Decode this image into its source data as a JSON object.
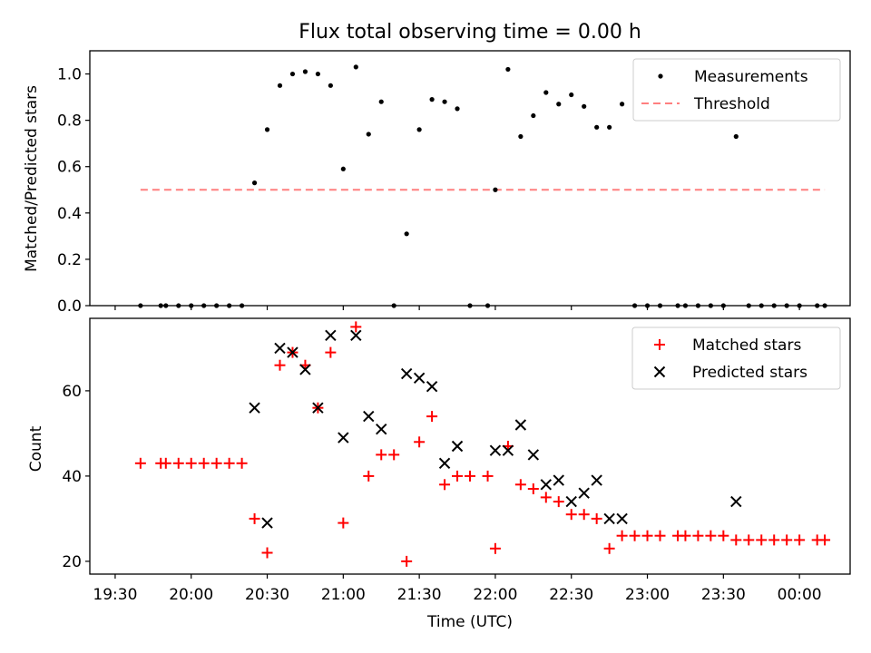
{
  "chart_data": [
    {
      "type": "scatter",
      "title": "Flux total observing time = 0.00 h",
      "xlabel": "",
      "ylabel": "Matched/Predicted stars",
      "xlim": [
        "19:20",
        "00:20"
      ],
      "ylim": [
        0.0,
        1.1
      ],
      "yticks": [
        "0.0",
        "0.2",
        "0.4",
        "0.6",
        "0.8",
        "1.0"
      ],
      "legend": {
        "position": "top-right",
        "entries": [
          "Measurements",
          "Threshold"
        ]
      },
      "threshold": {
        "name": "Threshold",
        "y": 0.5,
        "x_start": "19:40",
        "x_end": "00:10",
        "color": "#ff7f7f"
      },
      "series": [
        {
          "name": "Measurements",
          "color": "#000000",
          "marker": "dot",
          "points": [
            [
              "19:40",
              0.0
            ],
            [
              "19:48",
              0.0
            ],
            [
              "19:50",
              0.0
            ],
            [
              "19:55",
              0.0
            ],
            [
              "20:00",
              0.0
            ],
            [
              "20:05",
              0.0
            ],
            [
              "20:10",
              0.0
            ],
            [
              "20:15",
              0.0
            ],
            [
              "20:20",
              0.0
            ],
            [
              "20:25",
              0.53
            ],
            [
              "20:30",
              0.76
            ],
            [
              "20:35",
              0.95
            ],
            [
              "20:40",
              1.0
            ],
            [
              "20:45",
              1.01
            ],
            [
              "20:50",
              1.0
            ],
            [
              "20:55",
              0.95
            ],
            [
              "21:00",
              0.59
            ],
            [
              "21:05",
              1.03
            ],
            [
              "21:10",
              0.74
            ],
            [
              "21:15",
              0.88
            ],
            [
              "21:20",
              0.0
            ],
            [
              "21:25",
              0.31
            ],
            [
              "21:30",
              0.76
            ],
            [
              "21:35",
              0.89
            ],
            [
              "21:40",
              0.88
            ],
            [
              "21:45",
              0.85
            ],
            [
              "21:50",
              0.0
            ],
            [
              "21:57",
              0.0
            ],
            [
              "22:00",
              0.5
            ],
            [
              "22:05",
              1.02
            ],
            [
              "22:10",
              0.73
            ],
            [
              "22:15",
              0.82
            ],
            [
              "22:20",
              0.92
            ],
            [
              "22:25",
              0.87
            ],
            [
              "22:30",
              0.91
            ],
            [
              "22:35",
              0.86
            ],
            [
              "22:40",
              0.77
            ],
            [
              "22:45",
              0.77
            ],
            [
              "22:50",
              0.87
            ],
            [
              "22:55",
              0.0
            ],
            [
              "23:00",
              0.0
            ],
            [
              "23:05",
              0.0
            ],
            [
              "23:12",
              0.0
            ],
            [
              "23:15",
              0.0
            ],
            [
              "23:20",
              0.0
            ],
            [
              "23:25",
              0.0
            ],
            [
              "23:30",
              0.0
            ],
            [
              "23:35",
              0.73
            ],
            [
              "23:40",
              0.0
            ],
            [
              "23:45",
              0.0
            ],
            [
              "23:50",
              0.0
            ],
            [
              "23:55",
              0.0
            ],
            [
              "00:00",
              0.0
            ],
            [
              "00:07",
              0.0
            ],
            [
              "00:10",
              0.0
            ]
          ]
        }
      ]
    },
    {
      "type": "scatter",
      "title": "",
      "xlabel": "Time (UTC)",
      "ylabel": "Count",
      "xlim": [
        "19:20",
        "00:20"
      ],
      "ylim": [
        17,
        77
      ],
      "yticks": [
        "20",
        "40",
        "60"
      ],
      "xticks": [
        "19:30",
        "20:00",
        "20:30",
        "21:00",
        "21:30",
        "22:00",
        "22:30",
        "23:00",
        "23:30",
        "00:00"
      ],
      "legend": {
        "position": "top-right",
        "entries": [
          "Matched stars",
          "Predicted stars"
        ]
      },
      "series": [
        {
          "name": "Matched stars",
          "color": "#ff0000",
          "marker": "plus",
          "points": [
            [
              "19:40",
              43
            ],
            [
              "19:48",
              43
            ],
            [
              "19:50",
              43
            ],
            [
              "19:55",
              43
            ],
            [
              "20:00",
              43
            ],
            [
              "20:05",
              43
            ],
            [
              "20:10",
              43
            ],
            [
              "20:15",
              43
            ],
            [
              "20:20",
              43
            ],
            [
              "20:25",
              30
            ],
            [
              "20:30",
              22
            ],
            [
              "20:35",
              66
            ],
            [
              "20:40",
              69
            ],
            [
              "20:45",
              66
            ],
            [
              "20:50",
              56
            ],
            [
              "20:55",
              69
            ],
            [
              "21:00",
              29
            ],
            [
              "21:05",
              75
            ],
            [
              "21:10",
              40
            ],
            [
              "21:15",
              45
            ],
            [
              "21:20",
              45
            ],
            [
              "21:25",
              20
            ],
            [
              "21:30",
              48
            ],
            [
              "21:35",
              54
            ],
            [
              "21:40",
              38
            ],
            [
              "21:45",
              40
            ],
            [
              "21:50",
              40
            ],
            [
              "21:57",
              40
            ],
            [
              "22:00",
              23
            ],
            [
              "22:05",
              47
            ],
            [
              "22:10",
              38
            ],
            [
              "22:15",
              37
            ],
            [
              "22:20",
              35
            ],
            [
              "22:25",
              34
            ],
            [
              "22:30",
              31
            ],
            [
              "22:35",
              31
            ],
            [
              "22:40",
              30
            ],
            [
              "22:45",
              23
            ],
            [
              "22:50",
              26
            ],
            [
              "22:55",
              26
            ],
            [
              "23:00",
              26
            ],
            [
              "23:05",
              26
            ],
            [
              "23:12",
              26
            ],
            [
              "23:15",
              26
            ],
            [
              "23:20",
              26
            ],
            [
              "23:25",
              26
            ],
            [
              "23:30",
              26
            ],
            [
              "23:35",
              25
            ],
            [
              "23:40",
              25
            ],
            [
              "23:45",
              25
            ],
            [
              "23:50",
              25
            ],
            [
              "23:55",
              25
            ],
            [
              "00:00",
              25
            ],
            [
              "00:07",
              25
            ],
            [
              "00:10",
              25
            ]
          ]
        },
        {
          "name": "Predicted stars",
          "color": "#000000",
          "marker": "x",
          "points": [
            [
              "20:25",
              56
            ],
            [
              "20:30",
              29
            ],
            [
              "20:35",
              70
            ],
            [
              "20:40",
              69
            ],
            [
              "20:45",
              65
            ],
            [
              "20:50",
              56
            ],
            [
              "20:55",
              73
            ],
            [
              "21:00",
              49
            ],
            [
              "21:05",
              73
            ],
            [
              "21:10",
              54
            ],
            [
              "21:15",
              51
            ],
            [
              "21:25",
              64
            ],
            [
              "21:30",
              63
            ],
            [
              "21:35",
              61
            ],
            [
              "21:40",
              43
            ],
            [
              "21:45",
              47
            ],
            [
              "22:00",
              46
            ],
            [
              "22:05",
              46
            ],
            [
              "22:10",
              52
            ],
            [
              "22:15",
              45
            ],
            [
              "22:20",
              38
            ],
            [
              "22:25",
              39
            ],
            [
              "22:30",
              34
            ],
            [
              "22:35",
              36
            ],
            [
              "22:40",
              39
            ],
            [
              "22:45",
              30
            ],
            [
              "22:50",
              30
            ],
            [
              "23:35",
              34
            ]
          ]
        }
      ]
    }
  ]
}
